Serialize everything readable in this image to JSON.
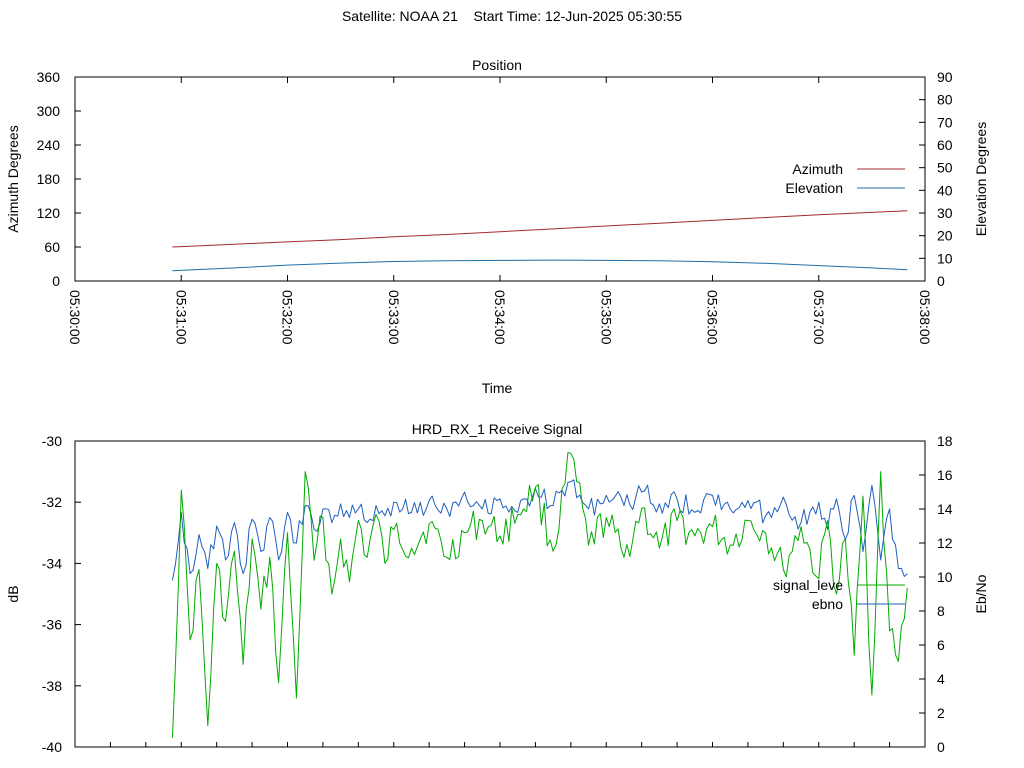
{
  "header": {
    "satellite": "Satellite: NOAA 21",
    "start_time": "Start Time: 12-Jun-2025 05:30:55"
  },
  "chart_data": [
    {
      "type": "line",
      "title": "Position",
      "xlabel": "Time",
      "ylabel": "Azimuth Degrees",
      "y2label": "Elevation Degrees",
      "xlim": [
        "05:30:00",
        "05:38:00"
      ],
      "ylim": [
        0,
        360
      ],
      "y2lim": [
        0,
        90
      ],
      "xticks": [
        "05:30:00",
        "05:31:00",
        "05:32:00",
        "05:33:00",
        "05:34:00",
        "05:35:00",
        "05:36:00",
        "05:37:00",
        "05:38:00"
      ],
      "yticks": [
        "0",
        "60",
        "120",
        "180",
        "240",
        "300",
        "360"
      ],
      "y2ticks": [
        "0",
        "10",
        "20",
        "30",
        "40",
        "50",
        "60",
        "70",
        "80",
        "90"
      ],
      "legend_position": "right",
      "series": [
        {
          "name": "Azimuth",
          "axis": "y",
          "color": "#a52a2a",
          "x": [
            "05:30:55",
            "05:31:30",
            "05:32:00",
            "05:32:30",
            "05:33:00",
            "05:33:30",
            "05:34:00",
            "05:34:30",
            "05:35:00",
            "05:35:30",
            "05:36:00",
            "05:36:30",
            "05:37:00",
            "05:37:30",
            "05:37:50"
          ],
          "y": [
            60,
            65,
            69,
            73,
            78,
            82,
            87,
            92,
            97,
            102,
            107,
            112,
            117,
            121,
            124
          ]
        },
        {
          "name": "Elevation",
          "axis": "y2",
          "color": "#1f6fa8",
          "x": [
            "05:30:55",
            "05:31:30",
            "05:32:00",
            "05:32:30",
            "05:33:00",
            "05:33:30",
            "05:34:00",
            "05:34:30",
            "05:35:00",
            "05:35:30",
            "05:36:00",
            "05:36:30",
            "05:37:00",
            "05:37:30",
            "05:37:50"
          ],
          "y": [
            4.5,
            5.8,
            7,
            7.9,
            8.6,
            8.9,
            9.1,
            9.2,
            9.1,
            8.9,
            8.5,
            7.8,
            6.8,
            5.8,
            5
          ]
        }
      ]
    },
    {
      "type": "line",
      "title": "HRD_RX_1 Receive Signal",
      "ylabel": "dB",
      "y2label": "Eb/No",
      "ylim": [
        -40,
        -30
      ],
      "y2lim": [
        0,
        18
      ],
      "yticks": [
        "-40",
        "-38",
        "-36",
        "-34",
        "-32",
        "-30"
      ],
      "y2ticks": [
        "0",
        "2",
        "4",
        "6",
        "8",
        "10",
        "12",
        "14",
        "16",
        "18"
      ],
      "legend_position": "right",
      "series": [
        {
          "name": "signal_leve",
          "axis": "y",
          "color": "#00aa00",
          "x": [
            "05:30:55",
            "05:31:00",
            "05:31:05",
            "05:31:10",
            "05:31:15",
            "05:31:20",
            "05:31:25",
            "05:31:30",
            "05:31:35",
            "05:31:40",
            "05:31:45",
            "05:31:50",
            "05:31:55",
            "05:32:00",
            "05:32:05",
            "05:32:10",
            "05:32:15",
            "05:32:20",
            "05:32:25",
            "05:32:30",
            "05:32:35",
            "05:32:40",
            "05:32:45",
            "05:32:50",
            "05:32:55",
            "05:33:00",
            "05:33:10",
            "05:33:20",
            "05:33:30",
            "05:33:40",
            "05:33:50",
            "05:34:00",
            "05:34:10",
            "05:34:20",
            "05:34:30",
            "05:34:40",
            "05:34:50",
            "05:35:00",
            "05:35:10",
            "05:35:20",
            "05:35:30",
            "05:35:40",
            "05:35:50",
            "05:36:00",
            "05:36:10",
            "05:36:20",
            "05:36:30",
            "05:36:40",
            "05:36:50",
            "05:37:00",
            "05:37:05",
            "05:37:10",
            "05:37:15",
            "05:37:20",
            "05:37:25",
            "05:37:30",
            "05:37:35",
            "05:37:40",
            "05:37:45",
            "05:37:50"
          ],
          "y": [
            -39.7,
            -31.6,
            -36.5,
            -34.2,
            -39.3,
            -34.0,
            -35.9,
            -33.6,
            -37.3,
            -33.2,
            -35.5,
            -33.8,
            -37.9,
            -33.0,
            -38.4,
            -31.0,
            -33.9,
            -32.5,
            -35.0,
            -33.2,
            -34.6,
            -32.6,
            -33.8,
            -32.4,
            -34.0,
            -32.9,
            -33.5,
            -32.7,
            -33.8,
            -33.0,
            -32.6,
            -33.1,
            -32.4,
            -31.5,
            -33.6,
            -30.4,
            -33.4,
            -32.5,
            -33.8,
            -32.2,
            -33.5,
            -32.6,
            -33.1,
            -32.8,
            -33.4,
            -32.6,
            -33.0,
            -34.2,
            -32.8,
            -34.5,
            -32.6,
            -35.0,
            -33.2,
            -37.0,
            -31.8,
            -38.3,
            -31.0,
            -36.2,
            -37.2,
            -34.8
          ]
        },
        {
          "name": "ebno",
          "axis": "y2",
          "color": "#1f5fbf",
          "x": [
            "05:30:55",
            "05:31:00",
            "05:31:05",
            "05:31:10",
            "05:31:15",
            "05:31:20",
            "05:31:25",
            "05:31:30",
            "05:31:35",
            "05:31:40",
            "05:31:45",
            "05:31:50",
            "05:31:55",
            "05:32:00",
            "05:32:05",
            "05:32:10",
            "05:32:15",
            "05:32:20",
            "05:32:25",
            "05:32:30",
            "05:32:35",
            "05:32:40",
            "05:32:45",
            "05:32:50",
            "05:32:55",
            "05:33:00",
            "05:33:10",
            "05:33:20",
            "05:33:30",
            "05:33:40",
            "05:33:50",
            "05:34:00",
            "05:34:10",
            "05:34:20",
            "05:34:30",
            "05:34:40",
            "05:34:50",
            "05:35:00",
            "05:35:10",
            "05:35:20",
            "05:35:30",
            "05:35:40",
            "05:35:50",
            "05:36:00",
            "05:36:10",
            "05:36:20",
            "05:36:30",
            "05:36:40",
            "05:36:50",
            "05:37:00",
            "05:37:05",
            "05:37:10",
            "05:37:15",
            "05:37:20",
            "05:37:25",
            "05:37:30",
            "05:37:35",
            "05:37:40",
            "05:37:45",
            "05:37:50"
          ],
          "y": [
            9.8,
            13.8,
            10.2,
            12.5,
            10.5,
            13.0,
            11.0,
            13.2,
            10.2,
            13.4,
            11.5,
            13.5,
            11.0,
            13.8,
            12.0,
            14.2,
            12.8,
            14.0,
            13.2,
            14.3,
            13.5,
            14.0,
            13.2,
            14.2,
            13.6,
            14.4,
            13.8,
            14.5,
            14.0,
            15.0,
            14.0,
            14.6,
            13.8,
            15.2,
            14.2,
            15.6,
            14.0,
            14.8,
            14.2,
            15.0,
            14.3,
            14.6,
            13.8,
            14.8,
            14.0,
            14.5,
            13.6,
            14.7,
            13.2,
            14.4,
            12.8,
            14.6,
            12.2,
            14.8,
            11.5,
            15.4,
            11.0,
            14.0,
            10.5,
            10.2
          ]
        }
      ]
    }
  ]
}
